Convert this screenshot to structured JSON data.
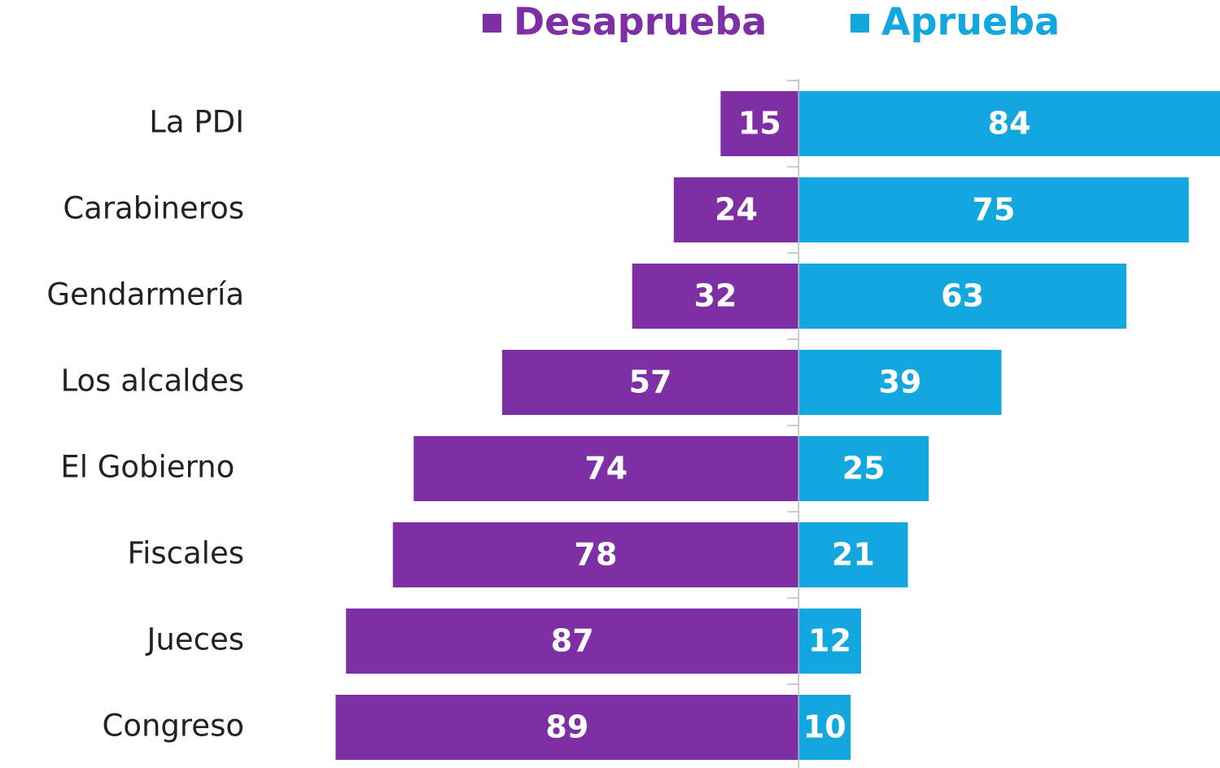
{
  "chart_data": {
    "type": "diverging_bar",
    "categories": [
      "La PDI",
      "Carabineros",
      "Gendarmería",
      "Los alcaldes",
      "El Gobierno ",
      "Fiscales",
      "Jueces",
      "Congreso"
    ],
    "series": [
      {
        "name": "Desaprueba",
        "color": "#7f2fa6",
        "values": [
          15,
          24,
          32,
          57,
          74,
          78,
          87,
          89
        ]
      },
      {
        "name": "Aprueba",
        "color": "#13a7e0",
        "values": [
          84,
          75,
          63,
          39,
          25,
          21,
          12,
          10
        ]
      }
    ],
    "xlim": [
      -90,
      81
    ]
  }
}
